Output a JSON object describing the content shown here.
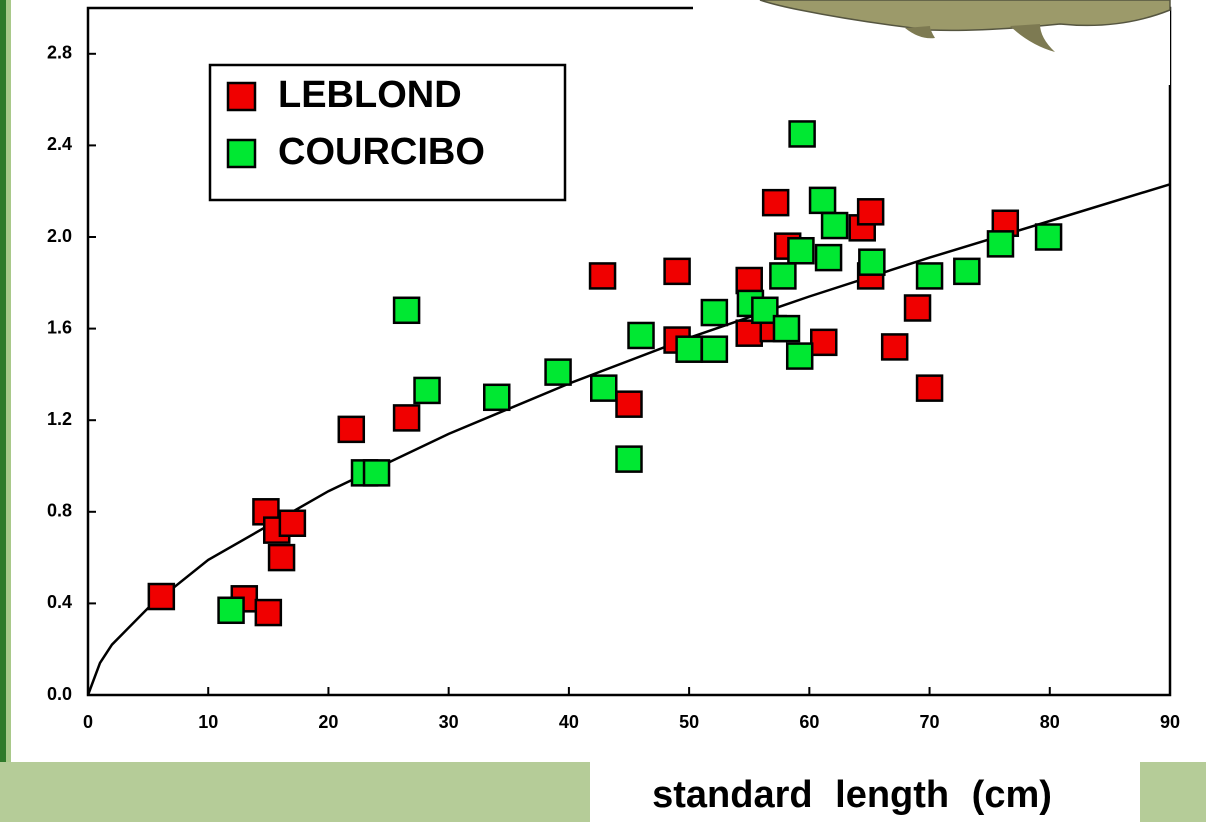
{
  "chart_data": {
    "type": "scatter",
    "x_label": "standard length (cm)",
    "xlim": [
      0,
      90
    ],
    "ylim": [
      0,
      3.0
    ],
    "xticks": [
      0,
      10,
      20,
      30,
      40,
      50,
      60,
      70,
      80,
      90
    ],
    "yticks": [
      {
        "value": 0,
        "label": "0.0"
      },
      0.4,
      0.8,
      1.2,
      1.6,
      {
        "value": 2,
        "label": "2.0"
      },
      2.4,
      2.8
    ],
    "legend": "upper left",
    "series": [
      {
        "name": "LEBLOND",
        "color": "#f00000",
        "x": [
          6.1,
          13.0,
          15.0,
          14.8,
          15.7,
          16.1,
          17.0,
          21.9,
          26.5,
          42.8,
          45.0,
          49.0,
          49.0,
          55.0,
          55.0,
          57.0,
          57.2,
          58.2,
          61.2,
          64.4,
          65.1,
          65.1,
          67.1,
          69.0,
          70.0,
          76.3
        ],
        "values": [
          0.43,
          0.42,
          0.36,
          0.8,
          0.72,
          0.6,
          0.75,
          1.16,
          1.21,
          1.83,
          1.27,
          1.85,
          1.55,
          1.81,
          1.58,
          1.6,
          2.15,
          1.96,
          1.54,
          2.04,
          2.11,
          1.83,
          1.52,
          1.69,
          1.34,
          2.06
        ]
      },
      {
        "name": "COURCIBO",
        "color": "#00e832",
        "x": [
          11.9,
          23.0,
          24.0,
          26.5,
          28.2,
          34.0,
          39.1,
          42.9,
          45.0,
          46.0,
          50.0,
          52.1,
          52.1,
          55.1,
          56.3,
          57.8,
          58.1,
          59.2,
          59.3,
          59.4,
          61.1,
          61.6,
          62.1,
          65.2,
          70.0,
          73.1,
          75.9,
          79.9
        ],
        "values": [
          0.37,
          0.97,
          0.97,
          1.68,
          1.33,
          1.3,
          1.41,
          1.34,
          1.03,
          1.57,
          1.51,
          1.67,
          1.51,
          1.71,
          1.68,
          1.83,
          1.6,
          1.48,
          1.94,
          2.45,
          2.16,
          1.91,
          2.05,
          1.89,
          1.83,
          1.85,
          1.97,
          2.0
        ]
      }
    ],
    "curve": {
      "color": "#000000",
      "x": [
        0,
        1,
        2,
        5,
        10,
        20,
        30,
        40,
        50,
        60,
        70,
        80,
        90
      ],
      "values": [
        0,
        0.14,
        0.22,
        0.38,
        0.59,
        0.89,
        1.14,
        1.36,
        1.56,
        1.74,
        1.91,
        2.07,
        2.23
      ]
    }
  }
}
